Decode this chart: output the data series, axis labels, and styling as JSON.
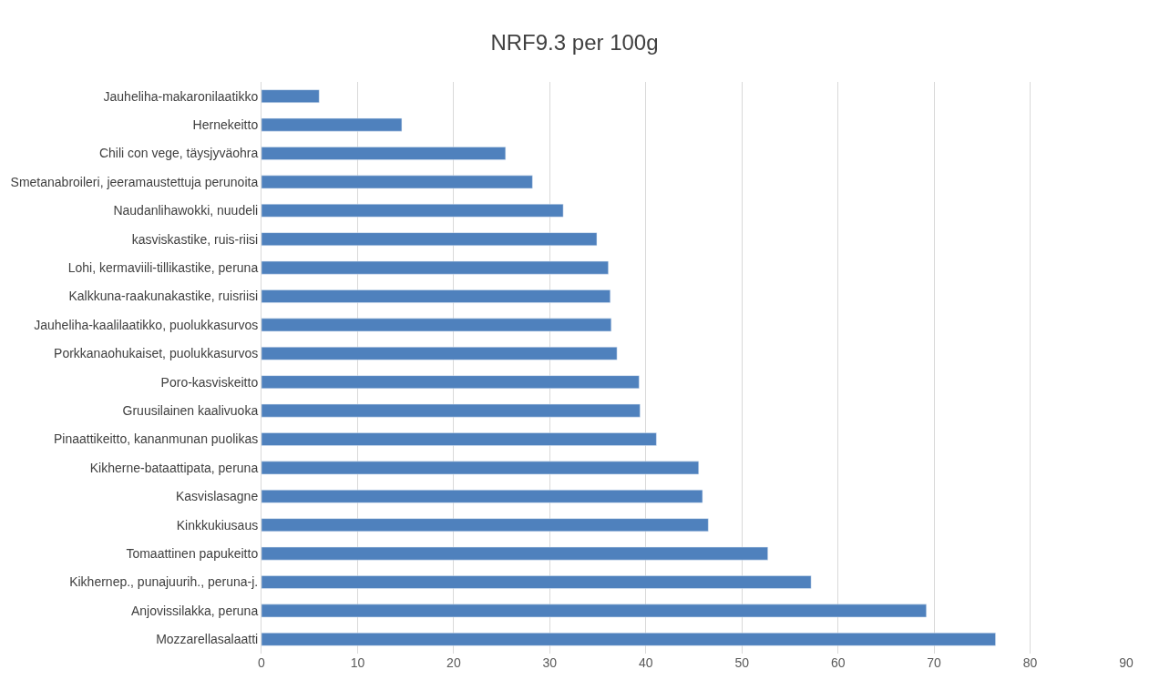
{
  "chart_data": {
    "type": "bar",
    "orientation": "horizontal",
    "title": "NRF9.3 per 100g",
    "categories": [
      "Jauheliha-makaronilaatikko",
      "Hernekeitto",
      "Chili con vege, täysjyväohra",
      "Smetanabroileri, jeeramaustettuja perunoita",
      "Naudanlihawokki, nuudeli",
      "kasviskastike, ruis-riisi",
      "Lohi, kermaviili-tillikastike, peruna",
      "Kalkkuna-raakunakastike, ruisriisi",
      "Jauheliha-kaalilaatikko, puolukkasurvos",
      "Porkkanaohukaiset, puolukkasurvos",
      "Poro-kasviskeitto",
      "Gruusilainen kaalivuoka",
      "Pinaattikeitto, kananmunan puolikas",
      "Kikherne-bataattipata, peruna",
      "Kasvislasagne",
      "Kinkkukiusaus",
      "Tomaattinen papukeitto",
      "Kikhernep., punajuurih., peruna-j.",
      "Anjovissilakka, peruna",
      "Mozzarellasalaatti"
    ],
    "values": [
      6.0,
      14.6,
      25.4,
      28.2,
      31.4,
      34.9,
      36.1,
      36.3,
      36.4,
      37.0,
      39.3,
      39.4,
      41.1,
      45.5,
      45.9,
      46.5,
      52.7,
      57.2,
      69.2,
      76.4
    ],
    "color": "#4f81bd",
    "xlim": [
      0,
      90
    ],
    "xticks": [
      0,
      10,
      20,
      30,
      40,
      50,
      60,
      70,
      80,
      90
    ],
    "grid": "x"
  }
}
